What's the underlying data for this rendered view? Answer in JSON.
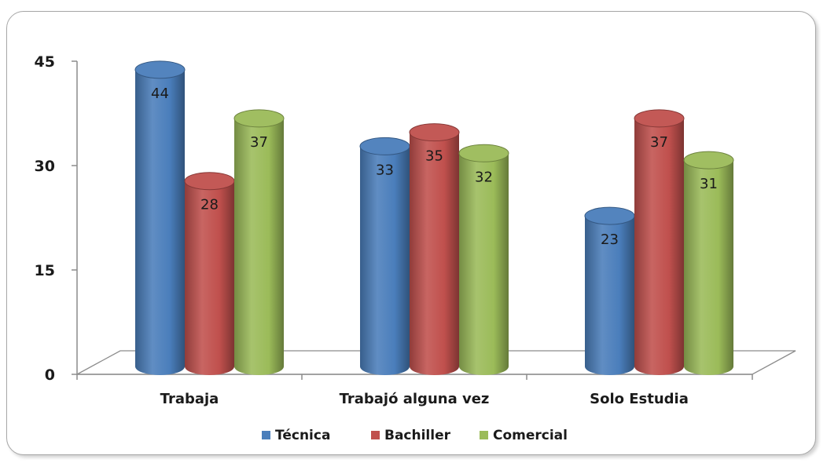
{
  "chart_data": {
    "type": "bar",
    "categories": [
      "Trabaja",
      "Trabajó alguna vez",
      "Solo  Estudia"
    ],
    "series": [
      {
        "name": "Técnica",
        "values": [
          44,
          33,
          23
        ],
        "color": "#4a7ebb"
      },
      {
        "name": "Bachiller",
        "values": [
          28,
          35,
          37
        ],
        "color": "#c0504d"
      },
      {
        "name": "Comercial",
        "values": [
          37,
          32,
          31
        ],
        "color": "#9bbb59"
      }
    ],
    "yticks": [
      "0",
      "15",
      "30",
      "45"
    ],
    "ylim": [
      0,
      45
    ],
    "legend_position": "bottom",
    "style": "3d-cylinder"
  }
}
